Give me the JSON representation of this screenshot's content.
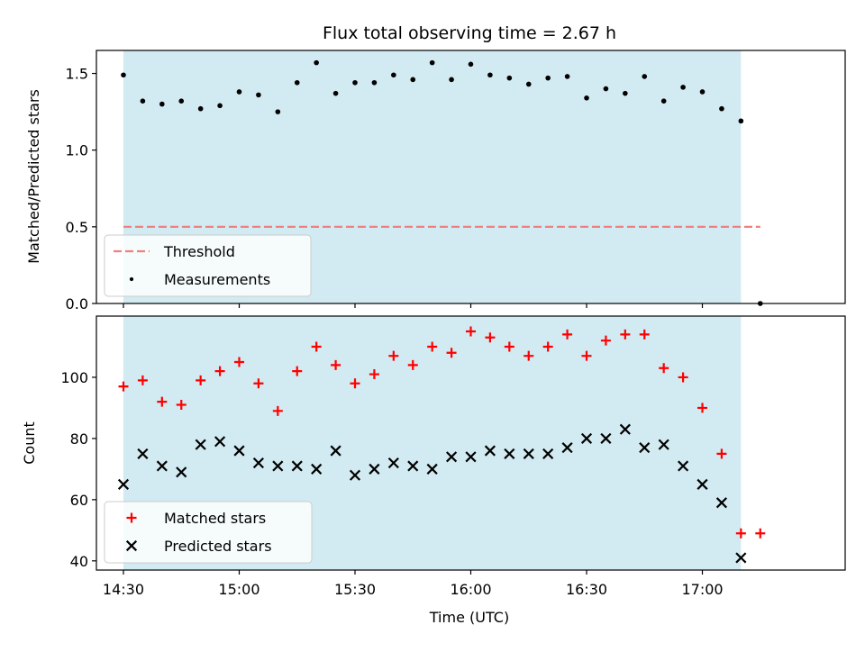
{
  "title": "Flux total observing time = 2.67 h",
  "chart_data": [
    {
      "type": "scatter",
      "ylabel": "Matched/Predicted stars",
      "xlabel": "",
      "xlim": [
        "14:23",
        "17:37"
      ],
      "ylim": [
        0,
        1.65
      ],
      "yticks": [
        0.0,
        0.5,
        1.0,
        1.5
      ],
      "ytick_labels": [
        "0.0",
        "0.5",
        "1.0",
        "1.5"
      ],
      "shaded_span": [
        "14:30",
        "17:10"
      ],
      "shaded_color": "#add8e6",
      "legend_position": "lower-left",
      "threshold": {
        "name": "Threshold",
        "value": 0.5,
        "x_range": [
          "14:30",
          "17:15"
        ],
        "color": "#f08080"
      },
      "series": [
        {
          "name": "Measurements",
          "marker": "dot",
          "color": "#000000",
          "points": [
            [
              "14:30",
              1.49
            ],
            [
              "14:35",
              1.32
            ],
            [
              "14:40",
              1.3
            ],
            [
              "14:45",
              1.32
            ],
            [
              "14:50",
              1.27
            ],
            [
              "14:55",
              1.29
            ],
            [
              "15:00",
              1.38
            ],
            [
              "15:05",
              1.36
            ],
            [
              "15:10",
              1.25
            ],
            [
              "15:15",
              1.44
            ],
            [
              "15:20",
              1.57
            ],
            [
              "15:25",
              1.37
            ],
            [
              "15:30",
              1.44
            ],
            [
              "15:35",
              1.44
            ],
            [
              "15:40",
              1.49
            ],
            [
              "15:45",
              1.46
            ],
            [
              "15:50",
              1.57
            ],
            [
              "15:55",
              1.46
            ],
            [
              "16:00",
              1.56
            ],
            [
              "16:05",
              1.49
            ],
            [
              "16:10",
              1.47
            ],
            [
              "16:15",
              1.43
            ],
            [
              "16:20",
              1.47
            ],
            [
              "16:25",
              1.48
            ],
            [
              "16:30",
              1.34
            ],
            [
              "16:35",
              1.4
            ],
            [
              "16:40",
              1.37
            ],
            [
              "16:45",
              1.48
            ],
            [
              "16:50",
              1.32
            ],
            [
              "16:55",
              1.41
            ],
            [
              "17:00",
              1.38
            ],
            [
              "17:05",
              1.27
            ],
            [
              "17:10",
              1.19
            ],
            [
              "17:15",
              0.0
            ]
          ]
        }
      ]
    },
    {
      "type": "scatter",
      "ylabel": "Count",
      "xlabel": "Time (UTC)",
      "xlim": [
        "14:23",
        "17:37"
      ],
      "ylim": [
        37,
        120
      ],
      "yticks": [
        40,
        60,
        80,
        100
      ],
      "ytick_labels": [
        "40",
        "60",
        "80",
        "100"
      ],
      "xticks": [
        "14:30",
        "15:00",
        "15:30",
        "16:00",
        "16:30",
        "17:00"
      ],
      "xtick_labels": [
        "14:30",
        "15:00",
        "15:30",
        "16:00",
        "16:30",
        "17:00"
      ],
      "shaded_span": [
        "14:30",
        "17:10"
      ],
      "shaded_color": "#add8e6",
      "legend_position": "lower-left",
      "series": [
        {
          "name": "Matched stars",
          "marker": "plus",
          "color": "#ff0000",
          "points": [
            [
              "14:30",
              97
            ],
            [
              "14:35",
              99
            ],
            [
              "14:40",
              92
            ],
            [
              "14:45",
              91
            ],
            [
              "14:50",
              99
            ],
            [
              "14:55",
              102
            ],
            [
              "15:00",
              105
            ],
            [
              "15:05",
              98
            ],
            [
              "15:10",
              89
            ],
            [
              "15:15",
              102
            ],
            [
              "15:20",
              110
            ],
            [
              "15:25",
              104
            ],
            [
              "15:30",
              98
            ],
            [
              "15:35",
              101
            ],
            [
              "15:40",
              107
            ],
            [
              "15:45",
              104
            ],
            [
              "15:50",
              110
            ],
            [
              "15:55",
              108
            ],
            [
              "16:00",
              115
            ],
            [
              "16:05",
              113
            ],
            [
              "16:10",
              110
            ],
            [
              "16:15",
              107
            ],
            [
              "16:20",
              110
            ],
            [
              "16:25",
              114
            ],
            [
              "16:30",
              107
            ],
            [
              "16:35",
              112
            ],
            [
              "16:40",
              114
            ],
            [
              "16:45",
              114
            ],
            [
              "16:50",
              103
            ],
            [
              "16:55",
              100
            ],
            [
              "17:00",
              90
            ],
            [
              "17:05",
              75
            ],
            [
              "17:10",
              49
            ],
            [
              "17:15",
              49
            ]
          ]
        },
        {
          "name": "Predicted stars",
          "marker": "x",
          "color": "#000000",
          "points": [
            [
              "14:30",
              65
            ],
            [
              "14:35",
              75
            ],
            [
              "14:40",
              71
            ],
            [
              "14:45",
              69
            ],
            [
              "14:50",
              78
            ],
            [
              "14:55",
              79
            ],
            [
              "15:00",
              76
            ],
            [
              "15:05",
              72
            ],
            [
              "15:10",
              71
            ],
            [
              "15:15",
              71
            ],
            [
              "15:20",
              70
            ],
            [
              "15:25",
              76
            ],
            [
              "15:30",
              68
            ],
            [
              "15:35",
              70
            ],
            [
              "15:40",
              72
            ],
            [
              "15:45",
              71
            ],
            [
              "15:50",
              70
            ],
            [
              "15:55",
              74
            ],
            [
              "16:00",
              74
            ],
            [
              "16:05",
              76
            ],
            [
              "16:10",
              75
            ],
            [
              "16:15",
              75
            ],
            [
              "16:20",
              75
            ],
            [
              "16:25",
              77
            ],
            [
              "16:30",
              80
            ],
            [
              "16:35",
              80
            ],
            [
              "16:40",
              83
            ],
            [
              "16:45",
              77
            ],
            [
              "16:50",
              78
            ],
            [
              "16:55",
              71
            ],
            [
              "17:00",
              65
            ],
            [
              "17:05",
              59
            ],
            [
              "17:10",
              41
            ]
          ]
        }
      ]
    }
  ]
}
